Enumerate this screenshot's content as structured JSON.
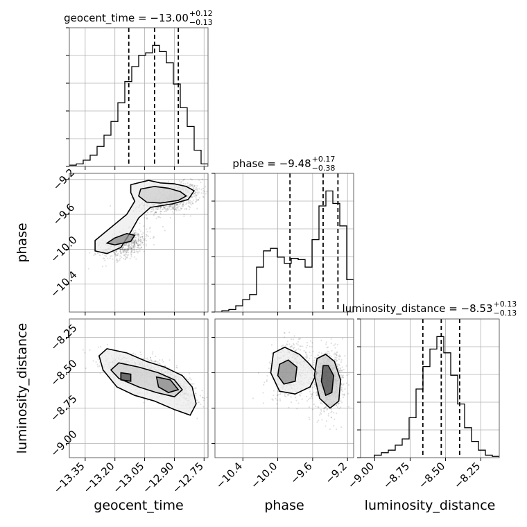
{
  "chart_data": {
    "type": "corner",
    "parameters": [
      {
        "key": "geocent_time",
        "label": "geocent_time",
        "range": [
          -13.43,
          -12.73
        ],
        "ticks": [
          -13.35,
          -13.2,
          -13.05,
          -12.9,
          -12.75
        ],
        "tick_labels": [
          "−13.35",
          "−13.20",
          "−13.05",
          "−12.90",
          "−12.75"
        ],
        "title": {
          "main": "geocent_time = −13.00",
          "sup": "+0.12",
          "sub": "−0.13"
        },
        "quantiles": [
          -13.13,
          -13.0,
          -12.88
        ],
        "hist": [
          0.01,
          0.02,
          0.05,
          0.09,
          0.16,
          0.25,
          0.36,
          0.51,
          0.68,
          0.8,
          0.89,
          0.91,
          0.97,
          0.92,
          0.83,
          0.66,
          0.47,
          0.32,
          0.13,
          0.02
        ]
      },
      {
        "key": "phase",
        "label": "phase",
        "range": [
          -10.72,
          -9.13
        ],
        "ticks": [
          -10.4,
          -10.0,
          -9.6,
          -9.2
        ],
        "tick_labels": [
          "−10.4",
          "−10.0",
          "−9.6",
          "−9.2"
        ],
        "title": {
          "main": "phase = −9.48",
          "sup": "+0.17",
          "sub": "−0.38"
        },
        "quantiles": [
          -9.86,
          -9.48,
          -9.31
        ],
        "hist": [
          0.0,
          0.01,
          0.02,
          0.05,
          0.1,
          0.14,
          0.36,
          0.49,
          0.51,
          0.44,
          0.39,
          0.43,
          0.42,
          0.36,
          0.58,
          0.85,
          0.97,
          0.87,
          0.69,
          0.26
        ]
      },
      {
        "key": "luminosity_distance",
        "label": "luminosity_distance",
        "range": [
          -9.1,
          -8.12
        ],
        "ticks": [
          -9.0,
          -8.75,
          -8.5,
          -8.25
        ],
        "tick_labels": [
          "−9.00",
          "−8.75",
          "−8.50",
          "−8.25"
        ],
        "title": {
          "main": "luminosity_distance = −8.53",
          "sup": "+0.13",
          "sub": "−0.13"
        },
        "quantiles": [
          -8.66,
          -8.53,
          -8.4
        ],
        "hist": [
          0.0,
          0.0,
          0.02,
          0.04,
          0.06,
          0.1,
          0.15,
          0.32,
          0.55,
          0.73,
          0.87,
          0.97,
          0.84,
          0.66,
          0.43,
          0.24,
          0.13,
          0.06,
          0.02,
          0.01
        ]
      }
    ],
    "pairs": [
      {
        "row": 1,
        "col": 0,
        "y": "phase",
        "x": "geocent_time",
        "samples": {
          "modes": [
            {
              "x": -12.92,
              "y": -9.42,
              "sx": 0.075,
              "sy": 0.085,
              "r": 0.35,
              "w": 0.65
            },
            {
              "x": -13.14,
              "y": -9.94,
              "sx": 0.06,
              "sy": 0.085,
              "r": 0.45,
              "w": 0.35
            }
          ]
        },
        "contours": [
          [
            [
              -13.12,
              -9.26
            ],
            [
              -13.03,
              -9.21
            ],
            [
              -12.97,
              -9.24
            ],
            [
              -12.9,
              -9.25
            ],
            [
              -12.84,
              -9.28
            ],
            [
              -12.8,
              -9.33
            ],
            [
              -12.83,
              -9.43
            ],
            [
              -12.91,
              -9.48
            ],
            [
              -13.02,
              -9.52
            ],
            [
              -13.08,
              -9.64
            ],
            [
              -13.12,
              -9.8
            ],
            [
              -13.17,
              -9.98
            ],
            [
              -13.24,
              -10.05
            ],
            [
              -13.3,
              -10.02
            ],
            [
              -13.3,
              -9.9
            ],
            [
              -13.22,
              -9.75
            ],
            [
              -13.14,
              -9.6
            ],
            [
              -13.1,
              -9.45
            ],
            [
              -13.12,
              -9.35
            ]
          ],
          [
            [
              -13.07,
              -9.31
            ],
            [
              -13.0,
              -9.28
            ],
            [
              -12.93,
              -9.3
            ],
            [
              -12.87,
              -9.34
            ],
            [
              -12.84,
              -9.39
            ],
            [
              -12.88,
              -9.44
            ],
            [
              -12.97,
              -9.47
            ],
            [
              -13.04,
              -9.46
            ],
            [
              -13.08,
              -9.39
            ]
          ],
          [
            [
              -13.2,
              -9.87
            ],
            [
              -13.14,
              -9.82
            ],
            [
              -13.1,
              -9.84
            ],
            [
              -13.12,
              -9.91
            ],
            [
              -13.2,
              -9.95
            ],
            [
              -13.24,
              -9.93
            ]
          ]
        ]
      },
      {
        "row": 2,
        "col": 0,
        "y": "luminosity_distance",
        "x": "geocent_time",
        "samples": {
          "modes": [
            {
              "x": -12.93,
              "y": -8.56,
              "sx": 0.07,
              "sy": 0.075,
              "r": -0.7,
              "w": 0.55
            },
            {
              "x": -13.12,
              "y": -8.5,
              "sx": 0.075,
              "sy": 0.07,
              "r": -0.6,
              "w": 0.45
            }
          ]
        },
        "contours": [
          [
            [
              -13.24,
              -8.33
            ],
            [
              -13.14,
              -8.36
            ],
            [
              -13.04,
              -8.42
            ],
            [
              -12.95,
              -8.46
            ],
            [
              -12.86,
              -8.52
            ],
            [
              -12.81,
              -8.6
            ],
            [
              -12.79,
              -8.72
            ],
            [
              -12.82,
              -8.8
            ],
            [
              -12.9,
              -8.76
            ],
            [
              -13.0,
              -8.7
            ],
            [
              -13.1,
              -8.66
            ],
            [
              -13.19,
              -8.6
            ],
            [
              -13.26,
              -8.48
            ],
            [
              -13.28,
              -8.38
            ]
          ],
          [
            [
              -13.18,
              -8.43
            ],
            [
              -13.08,
              -8.46
            ],
            [
              -12.98,
              -8.5
            ],
            [
              -12.9,
              -8.55
            ],
            [
              -12.86,
              -8.62
            ],
            [
              -12.9,
              -8.67
            ],
            [
              -12.99,
              -8.64
            ],
            [
              -13.08,
              -8.6
            ],
            [
              -13.18,
              -8.54
            ],
            [
              -13.22,
              -8.48
            ]
          ],
          [
            [
              -12.99,
              -8.53
            ],
            [
              -12.92,
              -8.55
            ],
            [
              -12.88,
              -8.62
            ],
            [
              -12.93,
              -8.64
            ],
            [
              -12.98,
              -8.6
            ]
          ],
          [
            [
              -13.17,
              -8.5
            ],
            [
              -13.12,
              -8.51
            ],
            [
              -13.12,
              -8.56
            ],
            [
              -13.17,
              -8.55
            ]
          ]
        ]
      },
      {
        "row": 2,
        "col": 1,
        "y": "luminosity_distance",
        "x": "phase",
        "samples": {
          "modes": [
            {
              "x": -9.42,
              "y": -8.56,
              "sx": 0.09,
              "sy": 0.1,
              "r": 0.1,
              "w": 0.6
            },
            {
              "x": -9.85,
              "y": -8.48,
              "sx": 0.12,
              "sy": 0.1,
              "r": 0.15,
              "w": 0.4
            }
          ]
        },
        "contours": [
          [
            [
              -10.05,
              -8.36
            ],
            [
              -9.92,
              -8.32
            ],
            [
              -9.75,
              -8.37
            ],
            [
              -9.65,
              -8.43
            ],
            [
              -9.55,
              -8.5
            ],
            [
              -9.63,
              -8.6
            ],
            [
              -9.8,
              -8.65
            ],
            [
              -9.98,
              -8.63
            ],
            [
              -10.08,
              -8.5
            ]
          ],
          [
            [
              -9.55,
              -8.4
            ],
            [
              -9.45,
              -8.37
            ],
            [
              -9.35,
              -8.42
            ],
            [
              -9.28,
              -8.55
            ],
            [
              -9.3,
              -8.7
            ],
            [
              -9.4,
              -8.75
            ],
            [
              -9.52,
              -8.68
            ],
            [
              -9.58,
              -8.52
            ]
          ],
          [
            [
              -9.98,
              -8.44
            ],
            [
              -9.88,
              -8.41
            ],
            [
              -9.78,
              -8.46
            ],
            [
              -9.8,
              -8.56
            ],
            [
              -9.93,
              -8.58
            ],
            [
              -10.0,
              -8.52
            ]
          ],
          [
            [
              -9.48,
              -8.45
            ],
            [
              -9.42,
              -8.45
            ],
            [
              -9.36,
              -8.52
            ],
            [
              -9.38,
              -8.64
            ],
            [
              -9.45,
              -8.66
            ],
            [
              -9.5,
              -8.56
            ]
          ]
        ]
      }
    ]
  }
}
